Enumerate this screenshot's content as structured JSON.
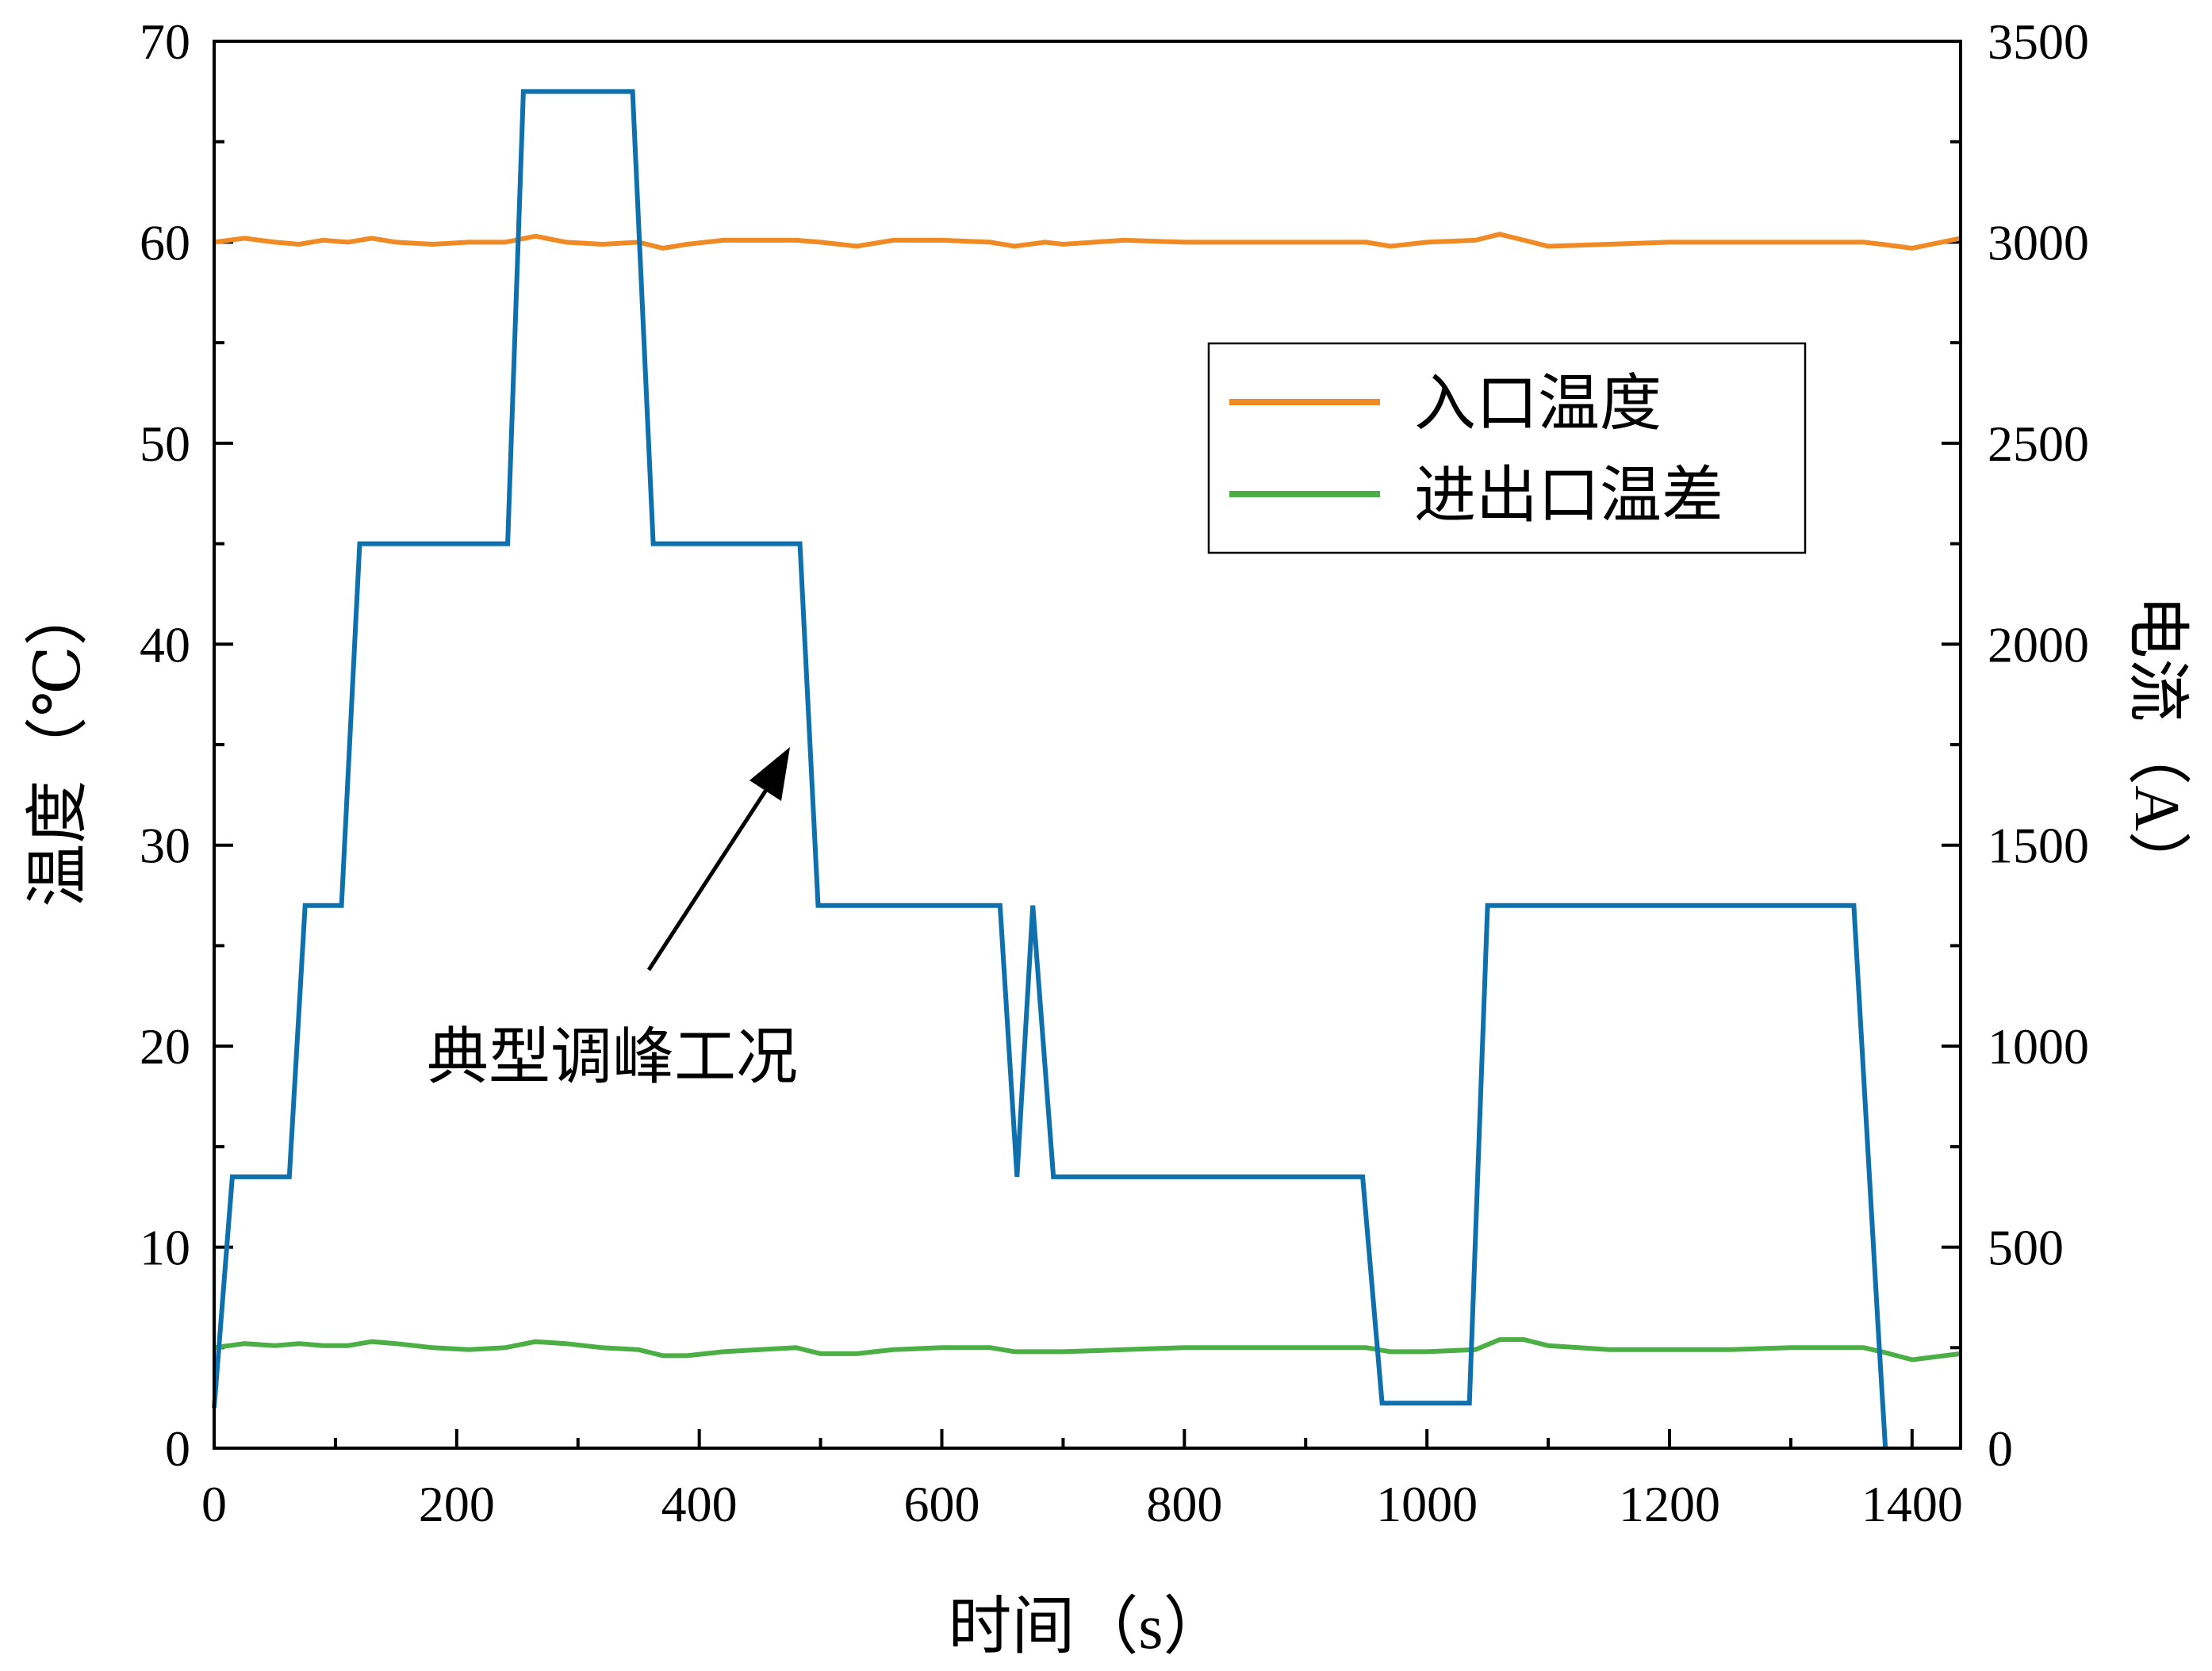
{
  "chart_data": {
    "type": "line",
    "title": "",
    "xlabel": "时间（s）",
    "ylabel_left": "温度（℃）",
    "ylabel_right": "电流（A）",
    "xlim": [
      0,
      1440
    ],
    "ylim_left": [
      0,
      70
    ],
    "ylim_right": [
      0,
      3500
    ],
    "x_ticks": [
      "0",
      "200",
      "400",
      "600",
      "800",
      "1000",
      "1200",
      "1400"
    ],
    "x_tick_values": [
      0,
      200,
      400,
      600,
      800,
      1000,
      1200,
      1400
    ],
    "y_left_ticks": [
      "0",
      "10",
      "20",
      "30",
      "40",
      "50",
      "60",
      "70"
    ],
    "y_left_tick_values": [
      0,
      10,
      20,
      30,
      40,
      50,
      60,
      70
    ],
    "y_right_ticks": [
      "0",
      "500",
      "1000",
      "1500",
      "2000",
      "2500",
      "3000",
      "3500"
    ],
    "y_right_tick_values": [
      0,
      500,
      1000,
      1500,
      2000,
      2500,
      3000,
      3500
    ],
    "grid": false,
    "legend_placement": "upper-right",
    "annotation": {
      "text": "典型调峰工况",
      "arrow_to": [
        478,
        1750
      ]
    },
    "series": [
      {
        "name": "入口温度",
        "axis": "left",
        "color": "#f08a24",
        "x": [
          0,
          25,
          50,
          70,
          90,
          110,
          130,
          150,
          180,
          210,
          240,
          265,
          290,
          320,
          350,
          370,
          390,
          420,
          450,
          480,
          500,
          530,
          560,
          600,
          640,
          660,
          685,
          700,
          750,
          800,
          850,
          900,
          950,
          970,
          1000,
          1040,
          1060,
          1080,
          1100,
          1150,
          1200,
          1250,
          1300,
          1360,
          1375,
          1400,
          1440
        ],
        "y": [
          60.0,
          60.2,
          60.0,
          59.9,
          60.1,
          60.0,
          60.2,
          60.0,
          59.9,
          60.0,
          60.0,
          60.3,
          60.0,
          59.9,
          60.0,
          59.7,
          59.9,
          60.1,
          60.1,
          60.1,
          60.0,
          59.8,
          60.1,
          60.1,
          60.0,
          59.8,
          60.0,
          59.9,
          60.1,
          60.0,
          60.0,
          60.0,
          60.0,
          59.8,
          60.0,
          60.1,
          60.4,
          60.1,
          59.8,
          59.9,
          60.0,
          60.0,
          60.0,
          60.0,
          59.9,
          59.7,
          60.2
        ]
      },
      {
        "name": "进出口温差",
        "axis": "left",
        "color": "#4caf45",
        "x": [
          0,
          25,
          50,
          70,
          90,
          110,
          130,
          150,
          180,
          210,
          240,
          265,
          290,
          320,
          350,
          370,
          390,
          420,
          450,
          480,
          500,
          530,
          560,
          600,
          640,
          660,
          685,
          700,
          750,
          800,
          850,
          900,
          950,
          970,
          1000,
          1040,
          1060,
          1080,
          1100,
          1150,
          1200,
          1250,
          1300,
          1360,
          1375,
          1400,
          1440
        ],
        "y": [
          5.0,
          5.2,
          5.1,
          5.2,
          5.1,
          5.1,
          5.3,
          5.2,
          5.0,
          4.9,
          5.0,
          5.3,
          5.2,
          5.0,
          4.9,
          4.6,
          4.6,
          4.8,
          4.9,
          5.0,
          4.7,
          4.7,
          4.9,
          5.0,
          5.0,
          4.8,
          4.8,
          4.8,
          4.9,
          5.0,
          5.0,
          5.0,
          5.0,
          4.8,
          4.8,
          4.9,
          5.4,
          5.4,
          5.1,
          4.9,
          4.9,
          4.9,
          5.0,
          5.0,
          4.8,
          4.4,
          4.7
        ]
      },
      {
        "name": "",
        "axis": "right",
        "color": "#0e70ad",
        "x": [
          0,
          15,
          62,
          75,
          105,
          120,
          242,
          255,
          345,
          362,
          483,
          498,
          648,
          662,
          675,
          692,
          947,
          963,
          1035,
          1050,
          1352,
          1372,
          1375,
          1378
        ],
        "y": [
          100,
          675,
          675,
          1350,
          1350,
          2250,
          2250,
          3375,
          3375,
          2250,
          2250,
          1350,
          1350,
          675,
          1350,
          675,
          675,
          112,
          112,
          1350,
          1350,
          300,
          150,
          0
        ]
      }
    ]
  }
}
